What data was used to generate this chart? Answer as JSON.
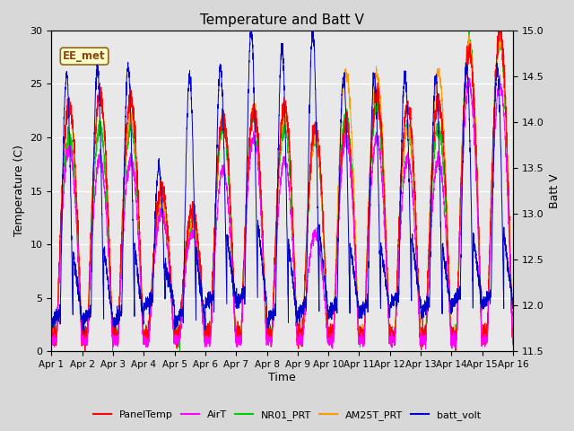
{
  "title": "Temperature and Batt V",
  "xlabel": "Time",
  "ylabel_left": "Temperature (C)",
  "ylabel_right": "Batt V",
  "annotation": "EE_met",
  "x_tick_labels": [
    "Apr 1",
    "Apr 2",
    "Apr 3",
    "Apr 4",
    "Apr 5",
    "Apr 6",
    "Apr 7",
    "Apr 8",
    "Apr 9",
    "Apr 10",
    "Apr 11",
    "Apr 12",
    "Apr 13",
    "Apr 14",
    "Apr 15",
    "Apr 16"
  ],
  "ylim_left": [
    0,
    30
  ],
  "ylim_right": [
    11.5,
    15.0
  ],
  "yticks_left": [
    0,
    5,
    10,
    15,
    20,
    25,
    30
  ],
  "yticks_right": [
    11.5,
    12.0,
    12.5,
    13.0,
    13.5,
    14.0,
    14.5,
    15.0
  ],
  "plot_bg_color": "#e8e8e8",
  "fig_bg_color": "#d8d8d8",
  "line_colors": {
    "PanelTemp": "#ff0000",
    "AirT": "#ff00ff",
    "NR01_PRT": "#00cc00",
    "AM25T_PRT": "#ff9900",
    "batt_volt": "#0000cc"
  },
  "legend_labels": [
    "PanelTemp",
    "AirT",
    "NR01_PRT",
    "AM25T_PRT",
    "batt_volt"
  ],
  "n_points": 3600,
  "days": 15,
  "annotation_facecolor": "#ffffcc",
  "annotation_edgecolor": "#8B6914",
  "annotation_textcolor": "#8B4513"
}
